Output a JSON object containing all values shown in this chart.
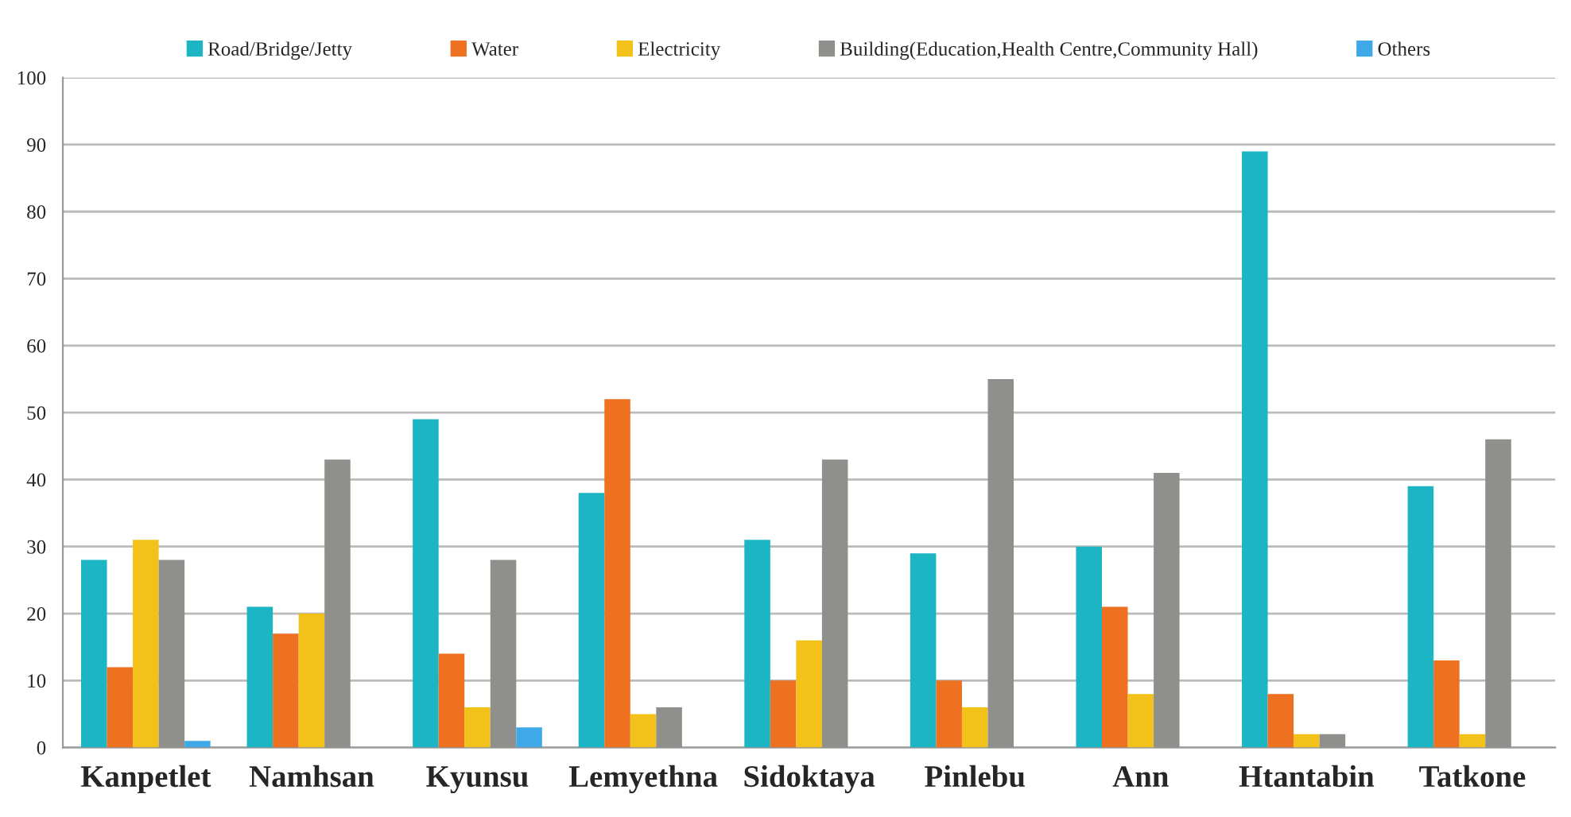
{
  "chart_data": {
    "type": "bar",
    "categories": [
      "Kanpetlet",
      "Namhsan",
      "Kyunsu",
      "Lemyethna",
      "Sidoktaya",
      "Pinlebu",
      "Ann",
      "Htantabin",
      "Tatkone"
    ],
    "series": [
      {
        "name": "Road/Bridge/Jetty",
        "color": "#1bb5c3",
        "values": [
          28,
          21,
          49,
          38,
          31,
          29,
          30,
          89,
          39
        ]
      },
      {
        "name": "Water",
        "color": "#ee7122",
        "values": [
          12,
          17,
          14,
          52,
          10,
          10,
          21,
          8,
          13
        ]
      },
      {
        "name": "Electricity",
        "color": "#f2c21b",
        "values": [
          31,
          20,
          6,
          5,
          16,
          6,
          8,
          2,
          2
        ]
      },
      {
        "name": "Building(Education,Health Centre,Community Hall)",
        "color": "#8f8f8b",
        "values": [
          28,
          43,
          28,
          6,
          43,
          55,
          41,
          2,
          46
        ]
      },
      {
        "name": "Others",
        "color": "#3fa9e8",
        "values": [
          1,
          null,
          3,
          null,
          null,
          null,
          null,
          null,
          null
        ]
      }
    ],
    "ylim": [
      0,
      100
    ],
    "yticks": [
      0,
      10,
      20,
      30,
      40,
      50,
      60,
      70,
      80,
      90,
      100
    ],
    "grid": "y",
    "legend": "top"
  }
}
